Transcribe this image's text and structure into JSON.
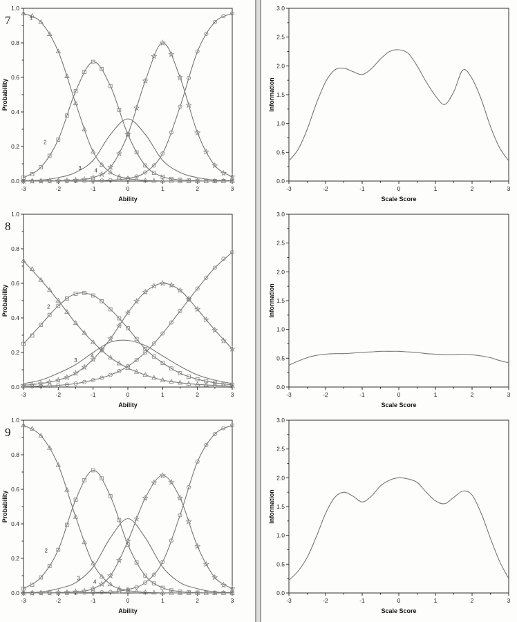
{
  "items": [
    {
      "number": "7"
    },
    {
      "number": "8"
    },
    {
      "number": "9"
    }
  ],
  "colors": {
    "curve": "#767676",
    "marker": "#8a8a8a",
    "frame": "#2f2f2f",
    "text": "#1c1c1c"
  },
  "chart_data": [
    {
      "type": "line",
      "item": "7",
      "panel": "left",
      "xlabel": "Ability",
      "ylabel": "Probability",
      "xlim": [
        -3,
        3
      ],
      "ylim": [
        0,
        1
      ],
      "grid": false,
      "legend": "none",
      "xticks": [
        -3,
        -2,
        -1,
        0,
        1,
        2,
        3
      ],
      "xtick_labels": [
        "-3",
        "-2",
        "-1",
        "0",
        "1",
        "2",
        "3"
      ],
      "yticks": [
        0,
        0.2,
        0.4,
        0.6,
        0.8,
        1.0
      ],
      "ytick_labels": [
        "0.0",
        "0.2",
        "0.4",
        "0.6",
        "0.8",
        "1.0"
      ],
      "x": [
        -3,
        -2.5,
        -2,
        -1.5,
        -1,
        -0.5,
        0,
        0.5,
        1,
        1.5,
        2,
        2.5,
        3
      ],
      "series": [
        {
          "name": "category-1",
          "marker": "triangle",
          "values": [
            0.97,
            0.92,
            0.75,
            0.45,
            0.17,
            0.05,
            0.015,
            0.004,
            0.001,
            0,
            0,
            0,
            0
          ]
        },
        {
          "name": "category-2",
          "marker": "square",
          "values": [
            0.02,
            0.08,
            0.24,
            0.52,
            0.69,
            0.55,
            0.27,
            0.09,
            0.025,
            0.007,
            0.002,
            0.001,
            0
          ]
        },
        {
          "name": "category-3",
          "marker": "none",
          "values": [
            0.002,
            0.006,
            0.02,
            0.05,
            0.12,
            0.27,
            0.36,
            0.27,
            0.12,
            0.05,
            0.02,
            0.006,
            0.002
          ]
        },
        {
          "name": "category-4",
          "marker": "star",
          "values": [
            0,
            0.001,
            0.002,
            0.006,
            0.02,
            0.08,
            0.27,
            0.58,
            0.8,
            0.6,
            0.28,
            0.09,
            0.025
          ]
        },
        {
          "name": "category-5",
          "marker": "circle",
          "values": [
            0,
            0,
            0,
            0.001,
            0.002,
            0.005,
            0.015,
            0.05,
            0.16,
            0.43,
            0.75,
            0.92,
            0.97
          ]
        }
      ],
      "annotations": [
        {
          "text": "1",
          "x": -2.78,
          "y": 0.935
        },
        {
          "text": "2",
          "x": -2.38,
          "y": 0.215
        },
        {
          "text": "3",
          "x": -1.38,
          "y": 0.065
        },
        {
          "text": "4",
          "x": -0.92,
          "y": 0.05
        }
      ]
    },
    {
      "type": "line",
      "item": "7",
      "panel": "right",
      "xlabel": "Scale Score",
      "ylabel": "Information",
      "xlim": [
        -3,
        3
      ],
      "ylim": [
        0,
        3
      ],
      "grid": false,
      "legend": "none",
      "xticks": [
        -3,
        -2,
        -1,
        0,
        1,
        2,
        3
      ],
      "xtick_labels": [
        "-3",
        "-2",
        "-1",
        "0",
        "1",
        "2",
        "3"
      ],
      "yticks": [
        0,
        0.5,
        1.0,
        1.5,
        2.0,
        2.5,
        3.0
      ],
      "ytick_labels": [
        "0.0",
        "0.5",
        "1.0",
        "1.5",
        "2.0",
        "2.5",
        "3.0"
      ],
      "x": [
        -3,
        -2.75,
        -2.5,
        -2.25,
        -2,
        -1.75,
        -1.5,
        -1.25,
        -1,
        -0.75,
        -0.5,
        -0.25,
        0,
        0.25,
        0.5,
        0.75,
        1,
        1.25,
        1.5,
        1.75,
        2,
        2.25,
        2.5,
        2.75,
        3
      ],
      "series": [
        {
          "name": "information",
          "marker": "none",
          "values": [
            0.35,
            0.55,
            0.9,
            1.35,
            1.72,
            1.93,
            1.96,
            1.9,
            1.85,
            1.95,
            2.12,
            2.25,
            2.28,
            2.22,
            2.0,
            1.72,
            1.48,
            1.33,
            1.55,
            1.93,
            1.78,
            1.42,
            0.95,
            0.58,
            0.35
          ]
        }
      ],
      "annotations": []
    },
    {
      "type": "line",
      "item": "8",
      "panel": "left",
      "xlabel": "Ability",
      "ylabel": "Probability",
      "xlim": [
        -3,
        3
      ],
      "ylim": [
        0,
        1
      ],
      "grid": false,
      "legend": "none",
      "xticks": [
        -3,
        -2,
        -1,
        0,
        1,
        2,
        3
      ],
      "xtick_labels": [
        "-3",
        "-2",
        "-1",
        "0",
        "1",
        "2",
        "3"
      ],
      "yticks": [
        0,
        0.2,
        0.4,
        0.6,
        0.8,
        1.0
      ],
      "ytick_labels": [
        "0.0",
        "0.2",
        "0.4",
        "0.6",
        "0.8",
        "1.0"
      ],
      "x": [
        -3,
        -2.5,
        -2,
        -1.5,
        -1,
        -0.5,
        0,
        0.5,
        1,
        1.5,
        2,
        2.5,
        3
      ],
      "series": [
        {
          "name": "category-1",
          "marker": "triangle",
          "values": [
            0.73,
            0.62,
            0.5,
            0.37,
            0.26,
            0.17,
            0.11,
            0.07,
            0.04,
            0.025,
            0.015,
            0.01,
            0.005
          ]
        },
        {
          "name": "category-2",
          "marker": "square",
          "values": [
            0.25,
            0.36,
            0.47,
            0.54,
            0.53,
            0.45,
            0.34,
            0.22,
            0.14,
            0.08,
            0.045,
            0.025,
            0.013
          ]
        },
        {
          "name": "category-3",
          "marker": "none",
          "values": [
            0.02,
            0.04,
            0.08,
            0.13,
            0.2,
            0.26,
            0.27,
            0.24,
            0.18,
            0.12,
            0.07,
            0.04,
            0.02
          ]
        },
        {
          "name": "category-4",
          "marker": "star",
          "values": [
            0.01,
            0.02,
            0.04,
            0.08,
            0.16,
            0.28,
            0.43,
            0.55,
            0.6,
            0.56,
            0.45,
            0.33,
            0.22
          ]
        },
        {
          "name": "category-5",
          "marker": "circle",
          "values": [
            0.002,
            0.005,
            0.01,
            0.02,
            0.04,
            0.07,
            0.12,
            0.2,
            0.31,
            0.44,
            0.57,
            0.69,
            0.78
          ]
        }
      ],
      "annotations": [
        {
          "text": "2",
          "x": -2.28,
          "y": 0.455
        },
        {
          "text": "3",
          "x": -1.5,
          "y": 0.145
        },
        {
          "text": "4",
          "x": -1.02,
          "y": 0.17
        }
      ]
    },
    {
      "type": "line",
      "item": "8",
      "panel": "right",
      "xlabel": "Scale Score",
      "ylabel": "Information",
      "xlim": [
        -3,
        3
      ],
      "ylim": [
        0,
        3
      ],
      "grid": false,
      "legend": "none",
      "xticks": [
        -3,
        -2,
        -1,
        0,
        1,
        2,
        3
      ],
      "xtick_labels": [
        "-3",
        "-2",
        "-1",
        "0",
        "1",
        "2",
        "3"
      ],
      "yticks": [
        0,
        0.5,
        1.0,
        1.5,
        2.0,
        2.5,
        3.0
      ],
      "ytick_labels": [
        "0.0",
        "0.5",
        "1.0",
        "1.5",
        "2.0",
        "2.5",
        "3.0"
      ],
      "x": [
        -3,
        -2.75,
        -2.5,
        -2.25,
        -2,
        -1.75,
        -1.5,
        -1.25,
        -1,
        -0.75,
        -0.5,
        -0.25,
        0,
        0.25,
        0.5,
        0.75,
        1,
        1.25,
        1.5,
        1.75,
        2,
        2.25,
        2.5,
        2.75,
        3
      ],
      "series": [
        {
          "name": "information",
          "marker": "none",
          "values": [
            0.38,
            0.45,
            0.51,
            0.55,
            0.57,
            0.58,
            0.58,
            0.59,
            0.6,
            0.61,
            0.62,
            0.62,
            0.62,
            0.61,
            0.6,
            0.58,
            0.57,
            0.56,
            0.56,
            0.57,
            0.56,
            0.54,
            0.51,
            0.46,
            0.42
          ]
        }
      ],
      "annotations": []
    },
    {
      "type": "line",
      "item": "9",
      "panel": "left",
      "xlabel": "Ability",
      "ylabel": "Probability",
      "xlim": [
        -3,
        3
      ],
      "ylim": [
        0,
        1
      ],
      "grid": false,
      "legend": "none",
      "xticks": [
        -3,
        -2,
        -1,
        0,
        1,
        2,
        3
      ],
      "xtick_labels": [
        "-3",
        "-2",
        "-1",
        "0",
        "1",
        "2",
        "3"
      ],
      "yticks": [
        0,
        0.2,
        0.4,
        0.6,
        0.8,
        1.0
      ],
      "ytick_labels": [
        "0.0",
        "0.2",
        "0.4",
        "0.6",
        "0.8",
        "1.0"
      ],
      "x": [
        -3,
        -2.5,
        -2,
        -1.5,
        -1,
        -0.5,
        0,
        0.5,
        1,
        1.5,
        2,
        2.5,
        3
      ],
      "series": [
        {
          "name": "category-1",
          "marker": "triangle",
          "values": [
            0.97,
            0.91,
            0.74,
            0.44,
            0.17,
            0.05,
            0.015,
            0.004,
            0.001,
            0,
            0,
            0,
            0
          ]
        },
        {
          "name": "category-2",
          "marker": "square",
          "values": [
            0.025,
            0.09,
            0.25,
            0.54,
            0.71,
            0.56,
            0.28,
            0.1,
            0.03,
            0.008,
            0.002,
            0.001,
            0
          ]
        },
        {
          "name": "category-3",
          "marker": "none",
          "values": [
            0.002,
            0.006,
            0.025,
            0.06,
            0.15,
            0.32,
            0.43,
            0.32,
            0.15,
            0.06,
            0.025,
            0.006,
            0.002
          ]
        },
        {
          "name": "category-4",
          "marker": "star",
          "values": [
            0,
            0.001,
            0.002,
            0.007,
            0.025,
            0.1,
            0.3,
            0.55,
            0.68,
            0.55,
            0.27,
            0.09,
            0.025
          ]
        },
        {
          "name": "category-5",
          "marker": "circle",
          "values": [
            0,
            0,
            0,
            0.001,
            0.003,
            0.006,
            0.02,
            0.06,
            0.18,
            0.45,
            0.76,
            0.92,
            0.97
          ]
        }
      ],
      "annotations": [
        {
          "text": "2",
          "x": -2.35,
          "y": 0.235
        },
        {
          "text": "3",
          "x": -1.42,
          "y": 0.075
        },
        {
          "text": "4",
          "x": -0.95,
          "y": 0.055
        }
      ]
    },
    {
      "type": "line",
      "item": "9",
      "panel": "right",
      "xlabel": "Scale Score",
      "ylabel": "Information",
      "xlim": [
        -3,
        3
      ],
      "ylim": [
        0,
        3
      ],
      "grid": false,
      "legend": "none",
      "xticks": [
        -3,
        -2,
        -1,
        0,
        1,
        2,
        3
      ],
      "xtick_labels": [
        "-3",
        "-2",
        "-1",
        "0",
        "1",
        "2",
        "3"
      ],
      "yticks": [
        0,
        0.5,
        1.0,
        1.5,
        2.0,
        2.5,
        3.0
      ],
      "ytick_labels": [
        "0.0",
        "0.5",
        "1.0",
        "1.5",
        "2.0",
        "2.5",
        "3.0"
      ],
      "x": [
        -3,
        -2.75,
        -2.5,
        -2.25,
        -2,
        -1.75,
        -1.5,
        -1.25,
        -1,
        -0.75,
        -0.5,
        -0.25,
        0,
        0.25,
        0.5,
        0.75,
        1,
        1.25,
        1.5,
        1.75,
        2,
        2.25,
        2.5,
        2.75,
        3
      ],
      "series": [
        {
          "name": "information",
          "marker": "none",
          "values": [
            0.22,
            0.38,
            0.62,
            0.98,
            1.38,
            1.66,
            1.75,
            1.68,
            1.58,
            1.68,
            1.86,
            1.96,
            2.0,
            1.98,
            1.92,
            1.75,
            1.6,
            1.55,
            1.66,
            1.77,
            1.7,
            1.38,
            0.95,
            0.55,
            0.25
          ]
        }
      ],
      "annotations": []
    }
  ]
}
